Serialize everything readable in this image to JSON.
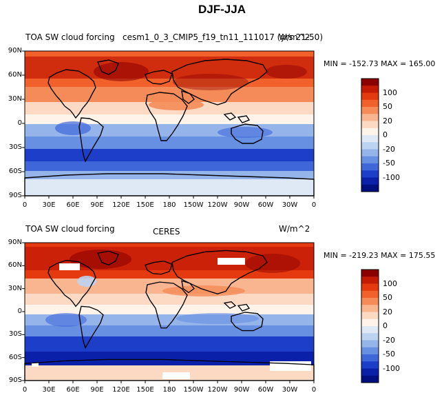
{
  "figure_title": "DJF-JJA",
  "panels": [
    {
      "left_title": "TOA SW cloud forcing",
      "center_title": "cesm1_0_3_CMIP5_f19_tn11_111017 (yrs 21-50)",
      "units": "W/m^2",
      "stats": "MIN = -152.73  MAX = 165.00"
    },
    {
      "left_title": "TOA SW cloud forcing",
      "center_title": "CERES",
      "units": "W/m^2",
      "stats": "MIN = -219.23  MAX = 175.55"
    }
  ],
  "lat_ticks": [
    "90N",
    "60N",
    "30N",
    "0",
    "30S",
    "60S",
    "90S"
  ],
  "lon_ticks": [
    "0",
    "30E",
    "60E",
    "90E",
    "120E",
    "150E",
    "180",
    "150W",
    "120W",
    "90W",
    "60W",
    "30W",
    "0"
  ],
  "colorbar": {
    "labels": [
      "100",
      "50",
      "20",
      "0",
      "-20",
      "-50",
      "-100"
    ],
    "colors": [
      "#8b0000",
      "#c41b06",
      "#e53a10",
      "#f2612b",
      "#f58b58",
      "#f9b58f",
      "#fbd9c3",
      "#fff3ea",
      "#dfe9f6",
      "#bcd3f1",
      "#94b4ea",
      "#6890e2",
      "#3f67da",
      "#1c3ec9",
      "#0a20a8",
      "#000e80"
    ]
  }
}
